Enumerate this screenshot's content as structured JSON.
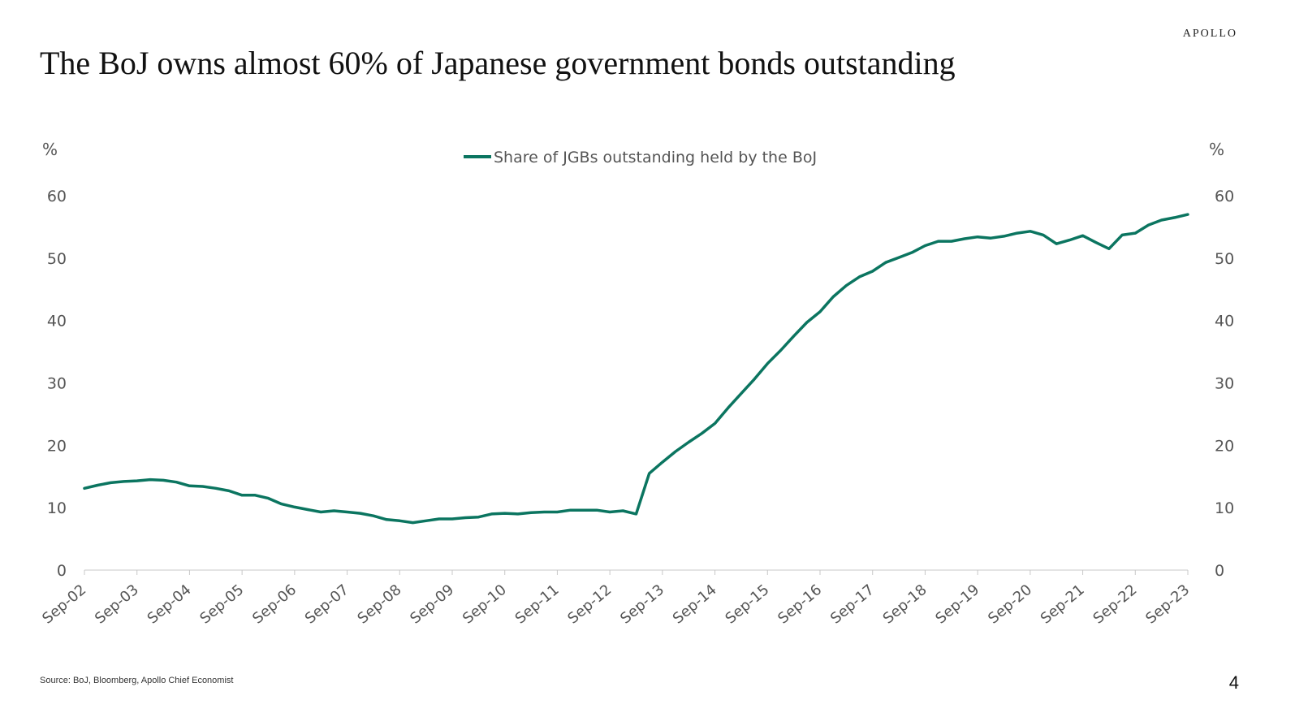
{
  "header": {
    "brand": "APOLLO",
    "title": "The BoJ owns almost 60% of Japanese government bonds outstanding"
  },
  "footer": {
    "source": "Source: BoJ, Bloomberg, Apollo Chief Economist",
    "page_number": "4"
  },
  "chart_data": {
    "type": "line",
    "title": "The BoJ owns almost 60% of Japanese government bonds outstanding",
    "ylabel_left": "%",
    "ylabel_right": "%",
    "ylim": [
      0,
      60
    ],
    "yticks": [
      0,
      10,
      20,
      30,
      40,
      50,
      60
    ],
    "x_tick_labels": [
      "Sep-02",
      "Sep-03",
      "Sep-04",
      "Sep-05",
      "Sep-06",
      "Sep-07",
      "Sep-08",
      "Sep-09",
      "Sep-10",
      "Sep-11",
      "Sep-12",
      "Sep-13",
      "Sep-14",
      "Sep-15",
      "Sep-16",
      "Sep-17",
      "Sep-18",
      "Sep-19",
      "Sep-20",
      "Sep-21",
      "Sep-22",
      "Sep-23"
    ],
    "grid": false,
    "legend_position": "top-center",
    "series": [
      {
        "name": "Share of JGBs outstanding held by the BoJ",
        "color": "#0b7560",
        "x": [
          "Sep-02",
          "Dec-02",
          "Mar-03",
          "Jun-03",
          "Sep-03",
          "Dec-03",
          "Mar-04",
          "Jun-04",
          "Sep-04",
          "Dec-04",
          "Mar-05",
          "Jun-05",
          "Sep-05",
          "Dec-05",
          "Mar-06",
          "Jun-06",
          "Sep-06",
          "Dec-06",
          "Mar-07",
          "Jun-07",
          "Sep-07",
          "Dec-07",
          "Mar-08",
          "Jun-08",
          "Sep-08",
          "Dec-08",
          "Mar-09",
          "Jun-09",
          "Sep-09",
          "Dec-09",
          "Mar-10",
          "Jun-10",
          "Sep-10",
          "Dec-10",
          "Mar-11",
          "Jun-11",
          "Sep-11",
          "Dec-11",
          "Mar-12",
          "Jun-12",
          "Sep-12",
          "Dec-12",
          "Mar-13",
          "Jun-13",
          "Sep-13",
          "Dec-13",
          "Mar-14",
          "Jun-14",
          "Sep-14",
          "Dec-14",
          "Mar-15",
          "Jun-15",
          "Sep-15",
          "Dec-15",
          "Mar-16",
          "Jun-16",
          "Sep-16",
          "Dec-16",
          "Mar-17",
          "Jun-17",
          "Sep-17",
          "Dec-17",
          "Mar-18",
          "Jun-18",
          "Sep-18",
          "Dec-18",
          "Mar-19",
          "Jun-19",
          "Sep-19",
          "Dec-19",
          "Mar-20",
          "Jun-20",
          "Sep-20",
          "Dec-20",
          "Mar-21",
          "Jun-21",
          "Sep-21",
          "Dec-21",
          "Mar-22",
          "Jun-22",
          "Sep-22",
          "Dec-22",
          "Mar-23",
          "Jun-23",
          "Sep-23"
        ],
        "values": [
          13.1,
          13.6,
          14.0,
          14.2,
          14.3,
          14.5,
          14.4,
          14.1,
          13.5,
          13.4,
          13.1,
          12.7,
          12.0,
          12.0,
          11.5,
          10.6,
          10.1,
          9.7,
          9.3,
          9.5,
          9.3,
          9.1,
          8.7,
          8.1,
          7.9,
          7.6,
          7.9,
          8.2,
          8.2,
          8.4,
          8.5,
          9.0,
          9.1,
          9.0,
          9.2,
          9.3,
          9.3,
          9.6,
          9.6,
          9.6,
          9.3,
          9.5,
          9.0,
          15.5,
          17.3,
          19.0,
          20.5,
          21.9,
          23.5,
          26.0,
          28.3,
          30.6,
          33.1,
          35.2,
          37.5,
          39.7,
          41.4,
          43.8,
          45.6,
          47.0,
          47.9,
          49.3,
          50.1,
          50.9,
          52.0,
          52.7,
          52.7,
          53.1,
          53.4,
          53.2,
          53.5,
          54.0,
          54.3,
          53.7,
          52.3,
          52.9,
          53.6,
          52.5,
          51.5,
          53.7,
          54.0,
          55.3,
          56.1,
          56.5,
          57.0
        ]
      }
    ]
  }
}
